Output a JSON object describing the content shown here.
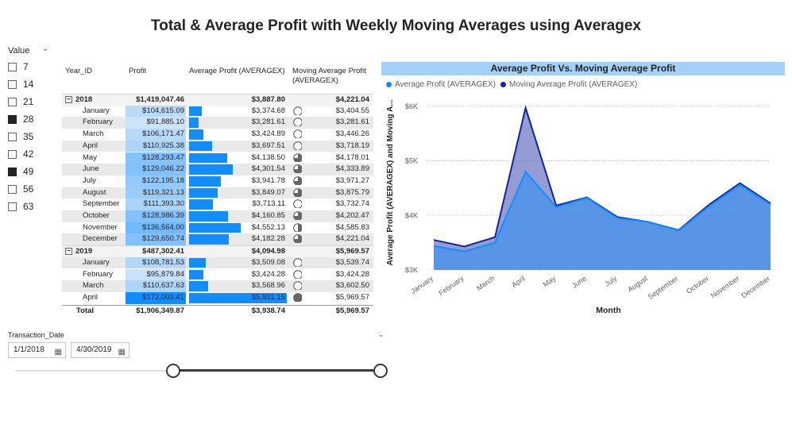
{
  "title": "Total & Average Profit with Weekly Moving Averages using Averagex",
  "value_slicer": {
    "title": "Value",
    "items": [
      {
        "label": "7",
        "checked": false
      },
      {
        "label": "14",
        "checked": false
      },
      {
        "label": "21",
        "checked": false
      },
      {
        "label": "28",
        "checked": true
      },
      {
        "label": "35",
        "checked": false
      },
      {
        "label": "42",
        "checked": false
      },
      {
        "label": "49",
        "checked": true
      },
      {
        "label": "56",
        "checked": false
      },
      {
        "label": "63",
        "checked": false
      }
    ]
  },
  "matrix": {
    "headers": {
      "row": "Year_ID",
      "profit": "Profit",
      "avg": "Average Profit (AVERAGEX)",
      "mov": "Moving Average Profit (AVERAGEX)"
    },
    "rows": [
      {
        "label": "2018",
        "level": 0,
        "profit": "$1,419,047.46",
        "avg": "$3,887.80",
        "mov": "$4,221.04",
        "pv": 1419047.46,
        "av": 3887.8,
        "kpi": null
      },
      {
        "label": "January",
        "level": 1,
        "profit": "$104,615.09",
        "avg": "$3,374.68",
        "mov": "$3,404.55",
        "pv": 104615.09,
        "av": 3374.68,
        "kpi": 0
      },
      {
        "label": "February",
        "level": 1,
        "profit": "$91,885.10",
        "avg": "$3,281.61",
        "mov": "$3,281.61",
        "pv": 91885.1,
        "av": 3281.61,
        "kpi": 0
      },
      {
        "label": "March",
        "level": 1,
        "profit": "$106,171.47",
        "avg": "$3,424.89",
        "mov": "$3,446.26",
        "pv": 106171.47,
        "av": 3424.89,
        "kpi": 0
      },
      {
        "label": "April",
        "level": 1,
        "profit": "$110,925.38",
        "avg": "$3,697.51",
        "mov": "$3,718.19",
        "pv": 110925.38,
        "av": 3697.51,
        "kpi": 0
      },
      {
        "label": "May",
        "level": 1,
        "profit": "$128,293.47",
        "avg": "$4,138.50",
        "mov": "$4,178.01",
        "pv": 128293.47,
        "av": 4138.5,
        "kpi": 3
      },
      {
        "label": "June",
        "level": 1,
        "profit": "$129,046.22",
        "avg": "$4,301.54",
        "mov": "$4,333.89",
        "pv": 129046.22,
        "av": 4301.54,
        "kpi": 3
      },
      {
        "label": "July",
        "level": 1,
        "profit": "$122,195.18",
        "avg": "$3,941.78",
        "mov": "$3,971.27",
        "pv": 122195.18,
        "av": 3941.78,
        "kpi": 3
      },
      {
        "label": "August",
        "level": 1,
        "profit": "$119,321.13",
        "avg": "$3,849.07",
        "mov": "$3,875.79",
        "pv": 119321.13,
        "av": 3849.07,
        "kpi": 3
      },
      {
        "label": "September",
        "level": 1,
        "profit": "$111,393.30",
        "avg": "$3,713.11",
        "mov": "$3,732.74",
        "pv": 111393.3,
        "av": 3713.11,
        "kpi": 0
      },
      {
        "label": "October",
        "level": 1,
        "profit": "$128,986.39",
        "avg": "$4,160.85",
        "mov": "$4,202.47",
        "pv": 128986.39,
        "av": 4160.85,
        "kpi": 3
      },
      {
        "label": "November",
        "level": 1,
        "profit": "$136,564.00",
        "avg": "$4,552.13",
        "mov": "$4,585.83",
        "pv": 136564.0,
        "av": 4552.13,
        "kpi": 2
      },
      {
        "label": "December",
        "level": 1,
        "profit": "$129,650.74",
        "avg": "$4,182.28",
        "mov": "$4,221.04",
        "pv": 129650.74,
        "av": 4182.28,
        "kpi": 3
      },
      {
        "label": "2019",
        "level": 0,
        "profit": "$487,302.41",
        "avg": "$4,094.98",
        "mov": "$5,969.57",
        "pv": 487302.41,
        "av": 4094.98,
        "kpi": null
      },
      {
        "label": "January",
        "level": 1,
        "profit": "$108,781.53",
        "avg": "$3,509.08",
        "mov": "$3,539.74",
        "pv": 108781.53,
        "av": 3509.08,
        "kpi": 0
      },
      {
        "label": "February",
        "level": 1,
        "profit": "$95,879.84",
        "avg": "$3,424.28",
        "mov": "$3,424.28",
        "pv": 95879.84,
        "av": 3424.28,
        "kpi": 0
      },
      {
        "label": "March",
        "level": 1,
        "profit": "$110,637.63",
        "avg": "$3,568.96",
        "mov": "$3,602.50",
        "pv": 110637.63,
        "av": 3568.96,
        "kpi": 0
      },
      {
        "label": "April",
        "level": 1,
        "profit": "$172,003.41",
        "avg": "$5,931.15",
        "mov": "$5,969.57",
        "pv": 172003.41,
        "av": 5931.15,
        "kpi": 4
      }
    ],
    "total": {
      "label": "Total",
      "profit": "$1,906,349.87",
      "avg": "$3,938.74",
      "mov": "$5,969.57"
    }
  },
  "chart_data": {
    "type": "area",
    "title": "Average Profit Vs. Moving Average Profit",
    "xlabel": "Month",
    "ylabel": "Average Profit (AVERAGEX) and Moving A...",
    "categories": [
      "January",
      "February",
      "March",
      "April",
      "May",
      "June",
      "July",
      "August",
      "September",
      "October",
      "November",
      "December"
    ],
    "series": [
      {
        "name": "Average Profit (AVERAGEX)",
        "color": "#118dff",
        "values": [
          3440,
          3340,
          3500,
          4800,
          4150,
          4320,
          3950,
          3880,
          3720,
          4170,
          4560,
          4200
        ]
      },
      {
        "name": "Moving Average Profit (AVERAGEX)",
        "color": "#12239e",
        "values": [
          3550,
          3430,
          3600,
          5970,
          4180,
          4330,
          3970,
          3880,
          3730,
          4200,
          4590,
          4220
        ]
      }
    ],
    "ylim": [
      3000,
      6200
    ],
    "yticks": [
      3000,
      4000,
      5000,
      6000
    ],
    "ytick_labels": [
      "$3K",
      "$4K",
      "$5K",
      "$6K"
    ],
    "grid": true,
    "legend": "top-left"
  },
  "date_slicer": {
    "title": "Transaction_Date",
    "start": "1/1/2018",
    "end": "4/30/2019"
  }
}
